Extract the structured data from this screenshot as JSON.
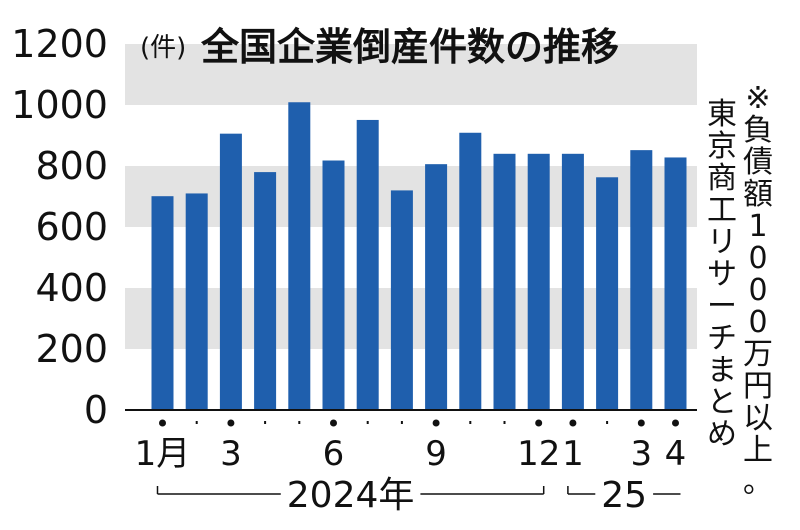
{
  "chart_data": {
    "type": "bar",
    "title": "全国企業倒産件数の推移",
    "unit_label": "(件)",
    "note_lines": [
      "※",
      "負債額1000万円以上。",
      "東京商工リサーチまとめ"
    ],
    "colors": {
      "bar": "#1f5fad",
      "band": "#e3e3e3",
      "axis": "#111111"
    },
    "ylim": [
      0,
      1200
    ],
    "yticks": [
      "0",
      "200",
      "400",
      "600",
      "800",
      "1000",
      "1200"
    ],
    "grid_bands": [
      [
        200,
        400
      ],
      [
        600,
        800
      ],
      [
        1000,
        1200
      ]
    ],
    "categories": [
      "2024-01",
      "2024-02",
      "2024-03",
      "2024-04",
      "2024-05",
      "2024-06",
      "2024-07",
      "2024-08",
      "2024-09",
      "2024-10",
      "2024-11",
      "2024-12",
      "2025-01",
      "2025-02",
      "2025-03",
      "2025-04"
    ],
    "values": [
      701,
      710,
      906,
      780,
      1009,
      818,
      951,
      720,
      806,
      909,
      840,
      840,
      840,
      763,
      852,
      828
    ],
    "x_tick_labels": [
      "1月",
      "",
      "3",
      "",
      "",
      "6",
      "",
      "",
      "9",
      "",
      "",
      "12",
      "1",
      "",
      "3",
      "4"
    ],
    "x_tick_marks": [
      "dot",
      "small",
      "dot",
      "small",
      "small",
      "dot",
      "small",
      "small",
      "dot",
      "small",
      "small",
      "dot",
      "dot",
      "small",
      "dot",
      "dot"
    ],
    "year_groups": [
      {
        "label": "2024年",
        "start": 0,
        "end": 11
      },
      {
        "label": "25",
        "start": 12,
        "end": 15
      }
    ]
  }
}
